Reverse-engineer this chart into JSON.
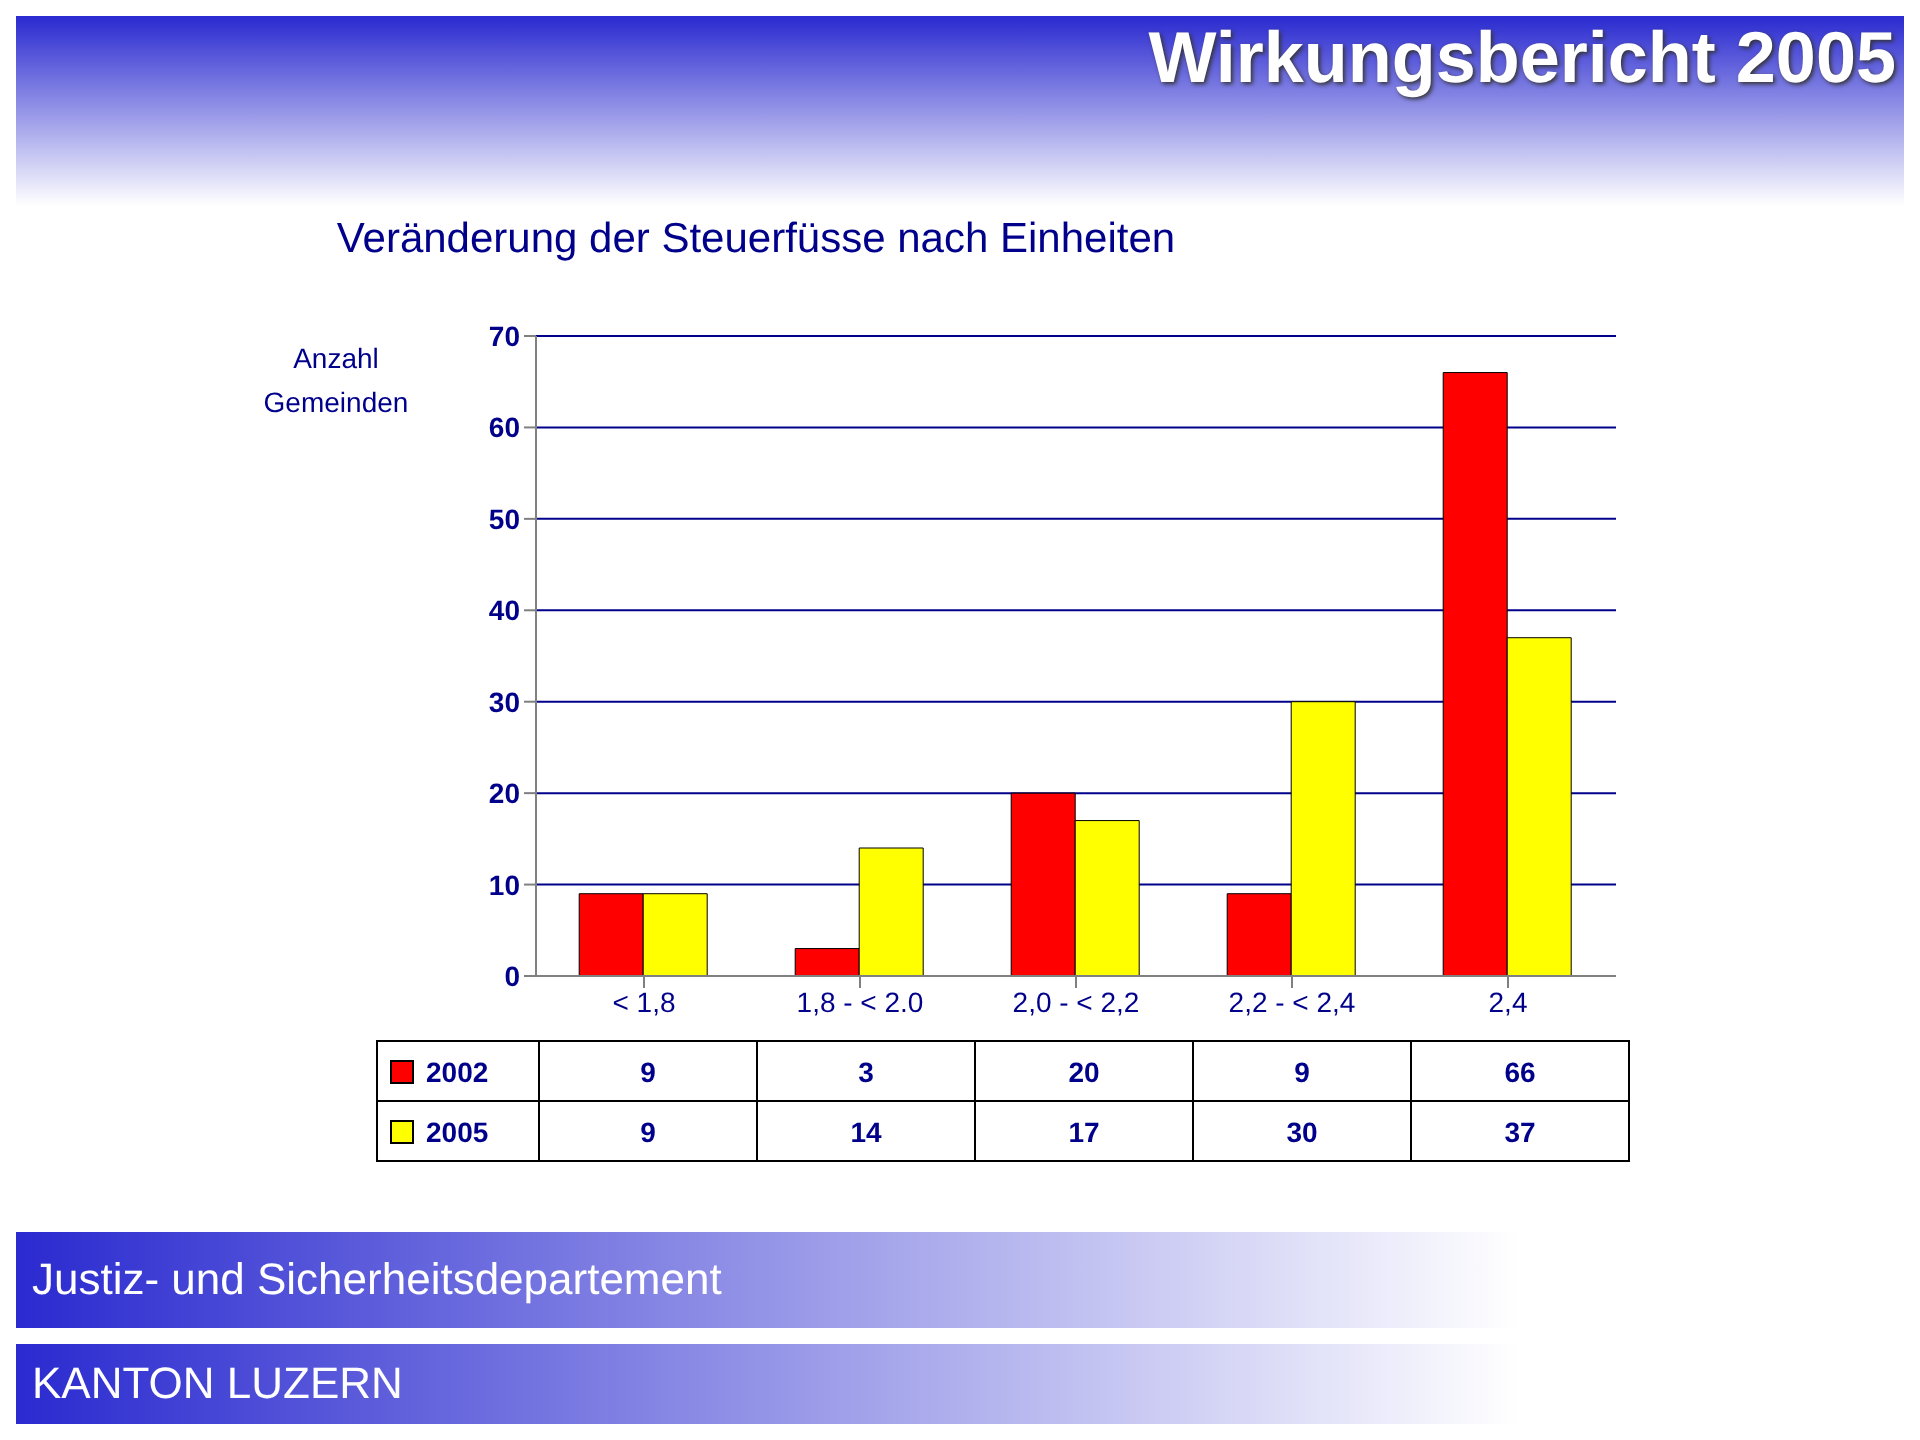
{
  "chart_data": {
    "type": "bar",
    "title": "Wirkungsbericht 2005",
    "subtitle": "Veränderung der Steuerfüsse nach Einheiten",
    "ylabel": "Anzahl Gemeinden",
    "categories": [
      "< 1,8",
      "1,8 - < 2.0",
      "2,0 - < 2,2",
      "2,2 - < 2,4",
      "2,4"
    ],
    "series": [
      {
        "name": "2002",
        "color": "#ff0000",
        "values": [
          9,
          3,
          20,
          9,
          66
        ]
      },
      {
        "name": "2005",
        "color": "#ffff00",
        "values": [
          9,
          14,
          17,
          30,
          37
        ]
      }
    ],
    "ylim": [
      0,
      70
    ],
    "yticks": [
      0,
      10,
      20,
      30,
      40,
      50,
      60,
      70
    ],
    "grid": "y",
    "legend": "bottom",
    "data_labels": true,
    "annotations": [
      "Justiz- und Sicherheitsdepartement",
      "KANTON LUZERN"
    ]
  }
}
